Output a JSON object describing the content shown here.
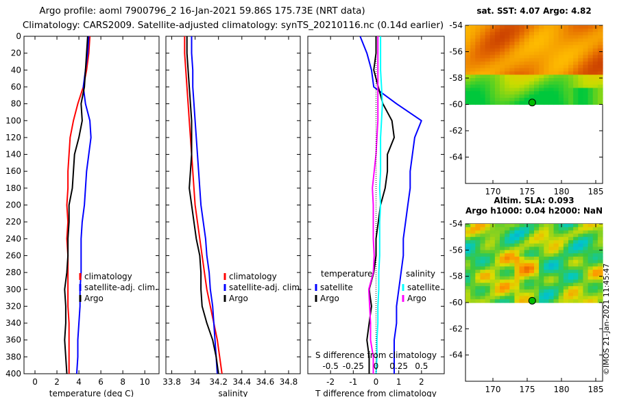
{
  "title": {
    "line1": "Argo profile: aoml 7900796_2 16-Jan-2021 59.86S 175.73E (NRT data)",
    "line2": "Climatology: CARS2009. Satellite-adjusted climatology: synTS_20210116.nc (0.14d earlier)"
  },
  "colors": {
    "climatology": "#ff0000",
    "satellite": "#0000ff",
    "argo": "#000000",
    "salinity_diff": "#ff00ff",
    "sat_salinity": "#00ffff",
    "marker": "#00bb00"
  },
  "chart_data": [
    {
      "id": "temperature",
      "type": "line",
      "title": "",
      "xlabel": "temperature (deg C)",
      "ylabel": "",
      "xlim": [
        -1,
        11.3
      ],
      "ylim": [
        400,
        0
      ],
      "xticks": [
        0,
        2,
        4,
        6,
        8,
        10
      ],
      "xtick_labels": [
        "0",
        "2",
        "4",
        "6",
        "8",
        "10"
      ],
      "yticks": [
        0,
        20,
        40,
        60,
        80,
        100,
        120,
        140,
        160,
        180,
        200,
        220,
        240,
        260,
        280,
        300,
        320,
        340,
        360,
        380,
        400
      ],
      "ytick_labels": [
        "0",
        "20",
        "40",
        "60",
        "80",
        "100",
        "120",
        "140",
        "160",
        "180",
        "200",
        "220",
        "240",
        "260",
        "280",
        "300",
        "320",
        "340",
        "360",
        "380",
        "400"
      ],
      "legend": [
        "climatology",
        "satellite-adj. clim.",
        "Argo"
      ],
      "legend_position": "bottom-right",
      "series": [
        {
          "name": "climatology",
          "color": "#ff0000",
          "x": [
            5.0,
            4.9,
            4.7,
            4.4,
            3.9,
            3.5,
            3.2,
            3.1,
            3.0,
            3.0,
            2.9,
            3.0,
            2.9,
            3.0,
            3.0,
            3.0,
            3.0,
            3.1,
            3.1,
            3.1,
            3.1
          ],
          "y": [
            0,
            20,
            40,
            60,
            80,
            100,
            120,
            140,
            160,
            180,
            200,
            220,
            240,
            260,
            280,
            300,
            320,
            340,
            360,
            380,
            400
          ]
        },
        {
          "name": "satellite-adj. clim.",
          "color": "#0000ff",
          "x": [
            4.9,
            4.8,
            4.6,
            4.4,
            4.6,
            5.0,
            5.1,
            4.9,
            4.7,
            4.6,
            4.5,
            4.3,
            4.2,
            4.2,
            4.2,
            4.1,
            4.1,
            4.0,
            3.9,
            3.9,
            3.8
          ],
          "y": [
            0,
            20,
            40,
            60,
            80,
            100,
            120,
            140,
            160,
            180,
            200,
            220,
            240,
            260,
            280,
            300,
            320,
            340,
            360,
            380,
            400
          ]
        },
        {
          "name": "Argo",
          "color": "#000000",
          "x": [
            4.8,
            4.7,
            4.6,
            4.5,
            4.2,
            4.3,
            4.0,
            3.6,
            3.5,
            3.4,
            3.1,
            3.1,
            3.0,
            3.0,
            2.9,
            2.7,
            2.8,
            2.8,
            2.7,
            2.8,
            2.9
          ],
          "y": [
            0,
            20,
            40,
            60,
            80,
            100,
            120,
            140,
            160,
            180,
            200,
            220,
            240,
            260,
            280,
            300,
            320,
            340,
            360,
            380,
            400
          ]
        }
      ]
    },
    {
      "id": "salinity",
      "type": "line",
      "title": "",
      "xlabel": "salinity",
      "ylabel": "",
      "xlim": [
        33.75,
        34.9
      ],
      "ylim": [
        400,
        0
      ],
      "xticks": [
        33.8,
        34,
        34.2,
        34.4,
        34.6,
        34.8
      ],
      "xtick_labels": [
        "33.8",
        "34",
        "34.2",
        "34.4",
        "34.6",
        "34.8"
      ],
      "legend": [
        "climatology",
        "satellite-adj. clim.",
        "Argo"
      ],
      "legend_position": "bottom-right",
      "series": [
        {
          "name": "climatology",
          "color": "#ff0000",
          "x": [
            33.91,
            33.91,
            33.92,
            33.93,
            33.94,
            33.95,
            33.96,
            33.97,
            33.98,
            33.99,
            34.0,
            34.02,
            34.04,
            34.06,
            34.08,
            34.1,
            34.13,
            34.16,
            34.19,
            34.21,
            34.23
          ],
          "y": [
            0,
            20,
            40,
            60,
            80,
            100,
            120,
            140,
            160,
            180,
            200,
            220,
            240,
            260,
            280,
            300,
            320,
            340,
            360,
            380,
            400
          ]
        },
        {
          "name": "satellite-adj. clim.",
          "color": "#0000ff",
          "x": [
            33.97,
            33.97,
            33.98,
            33.98,
            33.99,
            34.0,
            34.01,
            34.02,
            34.03,
            34.04,
            34.05,
            34.07,
            34.09,
            34.1,
            34.12,
            34.13,
            34.15,
            34.16,
            34.17,
            34.18,
            34.19
          ],
          "y": [
            0,
            20,
            40,
            60,
            80,
            100,
            120,
            140,
            160,
            180,
            200,
            220,
            240,
            260,
            280,
            300,
            320,
            340,
            360,
            380,
            400
          ]
        },
        {
          "name": "Argo",
          "color": "#000000",
          "x": [
            33.93,
            33.93,
            33.94,
            33.95,
            33.96,
            33.97,
            33.97,
            33.97,
            33.96,
            33.95,
            33.97,
            33.99,
            34.01,
            34.04,
            34.05,
            34.05,
            34.06,
            34.1,
            34.15,
            34.18,
            34.2
          ],
          "y": [
            0,
            20,
            40,
            60,
            80,
            100,
            120,
            140,
            160,
            180,
            200,
            220,
            240,
            260,
            280,
            300,
            320,
            340,
            360,
            380,
            400
          ]
        }
      ]
    },
    {
      "id": "difference",
      "type": "line",
      "title": "",
      "xlabel": "T difference from climatology",
      "xlabel2": "S difference from climatology",
      "ylabel": "",
      "xlim": [
        -3,
        3
      ],
      "ylim": [
        400,
        0
      ],
      "xticks": [
        -2,
        -1,
        0,
        1,
        2
      ],
      "xtick_labels": [
        "-2",
        "-1",
        "0",
        "1",
        "2"
      ],
      "x2ticks": [
        -0.5,
        -0.25,
        0,
        0.25,
        0.5
      ],
      "x2tick_labels": [
        "-0.5",
        "-0.25",
        "0",
        "0.25",
        "0.5"
      ],
      "legend_groups": [
        {
          "title": "temperature",
          "items": [
            "satellite",
            "Argo"
          ]
        },
        {
          "title": "salinity",
          "items": [
            "satellite",
            "Argo"
          ]
        }
      ],
      "series": [
        {
          "name": "temperature satellite",
          "color": "#0000ff",
          "x": [
            -0.7,
            -0.4,
            -0.2,
            -0.1,
            0.9,
            2.0,
            1.7,
            1.6,
            1.5,
            1.5,
            1.4,
            1.3,
            1.2,
            1.2,
            1.1,
            1.0,
            0.9,
            0.9,
            0.8,
            0.8,
            0.8
          ],
          "y": [
            0,
            20,
            40,
            60,
            80,
            100,
            120,
            140,
            160,
            180,
            200,
            220,
            240,
            260,
            280,
            300,
            320,
            340,
            360,
            380,
            400
          ]
        },
        {
          "name": "temperature Argo",
          "color": "#000000",
          "x": [
            0.0,
            0.0,
            -0.1,
            0.1,
            0.3,
            0.7,
            0.8,
            0.5,
            0.5,
            0.4,
            0.2,
            0.1,
            0.0,
            0.0,
            -0.1,
            -0.3,
            -0.2,
            -0.3,
            -0.4,
            -0.3,
            -0.3
          ],
          "y": [
            0,
            20,
            40,
            60,
            80,
            100,
            120,
            140,
            160,
            180,
            200,
            220,
            240,
            260,
            280,
            300,
            320,
            340,
            360,
            380,
            400
          ]
        },
        {
          "name": "salinity satellite",
          "color": "#00ffff",
          "x": [
            0.05,
            0.05,
            0.05,
            0.06,
            0.07,
            0.06,
            0.05,
            0.05,
            0.05,
            0.04,
            0.05,
            0.04,
            0.04,
            0.04,
            0.03,
            0.03,
            0.02,
            0.02,
            0.01,
            0.01,
            0.0
          ],
          "y": [
            0,
            20,
            40,
            60,
            80,
            100,
            120,
            140,
            160,
            180,
            200,
            220,
            240,
            260,
            280,
            300,
            320,
            340,
            360,
            380,
            400
          ]
        },
        {
          "name": "salinity Argo",
          "color": "#ff00ff",
          "x": [
            0.02,
            0.02,
            0.02,
            0.02,
            0.02,
            0.02,
            0.01,
            0.0,
            -0.02,
            -0.04,
            -0.03,
            -0.03,
            -0.03,
            -0.02,
            -0.03,
            -0.08,
            -0.07,
            -0.06,
            -0.06,
            -0.03,
            -0.03
          ],
          "y": [
            0,
            20,
            40,
            60,
            80,
            100,
            120,
            140,
            160,
            180,
            200,
            220,
            240,
            260,
            280,
            300,
            320,
            340,
            360,
            380,
            400
          ]
        }
      ]
    },
    {
      "id": "sst-map",
      "type": "heatmap",
      "title": "sat. SST: 4.07 Argo: 4.82",
      "xlim": [
        166,
        186
      ],
      "ylim": [
        -66,
        -54
      ],
      "xticks": [
        170,
        175,
        180,
        185
      ],
      "xtick_labels": [
        "170",
        "175",
        "180",
        "185"
      ],
      "yticks": [
        -54,
        -56,
        -58,
        -60,
        -62,
        -64
      ],
      "ytick_labels": [
        "-54",
        "-56",
        "-58",
        "-60",
        "-62",
        "-64"
      ],
      "data_lon_range": [
        166,
        186
      ],
      "data_lat_range": [
        -60,
        -54
      ],
      "float_location": [
        175.73,
        -59.86
      ]
    },
    {
      "id": "sla-map",
      "type": "heatmap",
      "title": "Altim. SLA: 0.093",
      "subtitle": "Argo h1000: 0.04 h2000: NaN",
      "xlim": [
        166,
        186
      ],
      "ylim": [
        -66,
        -54
      ],
      "xticks": [
        170,
        175,
        180,
        185
      ],
      "xtick_labels": [
        "170",
        "175",
        "180",
        "185"
      ],
      "yticks": [
        -54,
        -56,
        -58,
        -60,
        -62,
        -64
      ],
      "ytick_labels": [
        "-54",
        "-56",
        "-58",
        "-60",
        "-62",
        "-64"
      ],
      "data_lon_range": [
        166,
        186
      ],
      "data_lat_range": [
        -60,
        -54
      ],
      "float_location": [
        175.73,
        -59.86
      ]
    }
  ],
  "watermark": "©IMOS 21-Jan-2021 11:45:47"
}
